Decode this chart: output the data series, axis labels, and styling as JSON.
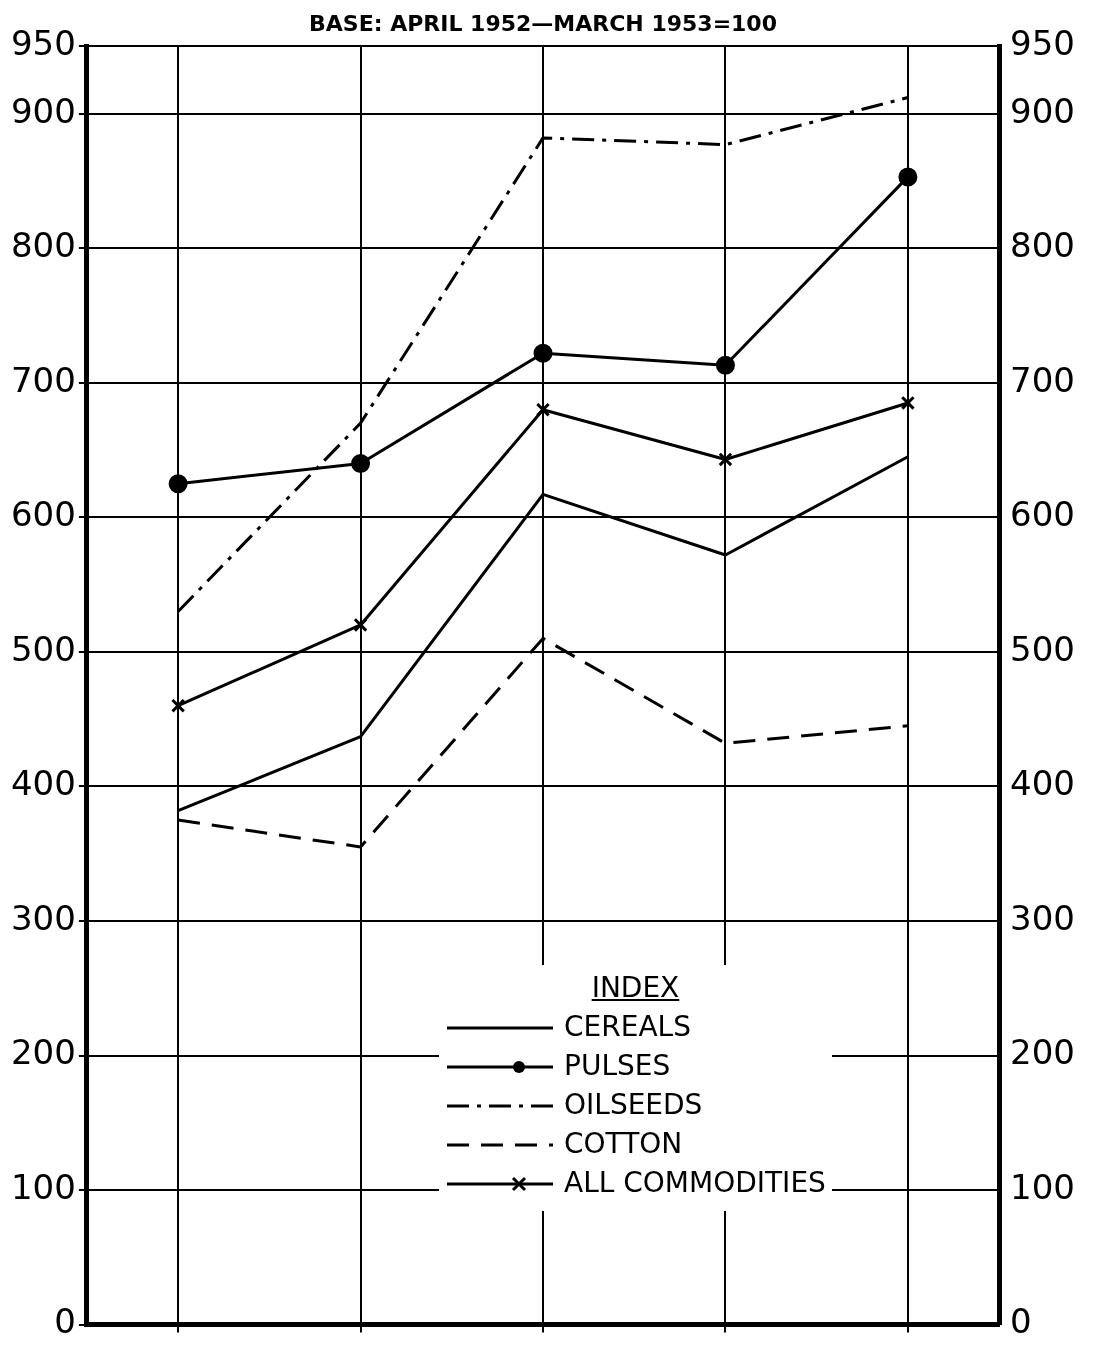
{
  "chart_data": {
    "type": "line",
    "title": "BASE: APRIL 1952—MARCH 1953=100",
    "legend_title": "INDEX",
    "categories": [
      null,
      null,
      null,
      null,
      null
    ],
    "series": [
      {
        "name": "CEREALS",
        "color": "#000000",
        "values": [
          382,
          437,
          617,
          572,
          645
        ],
        "line_style": "solid",
        "marker": "none"
      },
      {
        "name": "PULSES",
        "color": "#000000",
        "values": [
          625,
          640,
          722,
          713,
          853
        ],
        "line_style": "solid",
        "marker": "circle"
      },
      {
        "name": "OILSEEDS",
        "color": "#000000",
        "values": [
          530,
          670,
          882,
          877,
          912
        ],
        "line_style": "dashdot",
        "marker": "none"
      },
      {
        "name": "COTTON",
        "color": "#000000",
        "values": [
          375,
          355,
          510,
          432,
          445
        ],
        "line_style": "dashed",
        "marker": "none"
      },
      {
        "name": "ALL COMMODITIES",
        "color": "#000000",
        "values": [
          460,
          520,
          680,
          643,
          685
        ],
        "line_style": "solid",
        "marker": "cross"
      }
    ],
    "ylim": [
      0,
      950
    ],
    "yticks": [
      0,
      100,
      200,
      300,
      400,
      500,
      600,
      700,
      800,
      900,
      950
    ],
    "y2lim": [
      0,
      950
    ],
    "y2ticks": [
      0,
      100,
      200,
      300,
      400,
      500,
      600,
      700,
      800,
      900,
      950
    ],
    "grid": true,
    "legend": "bottom right"
  }
}
